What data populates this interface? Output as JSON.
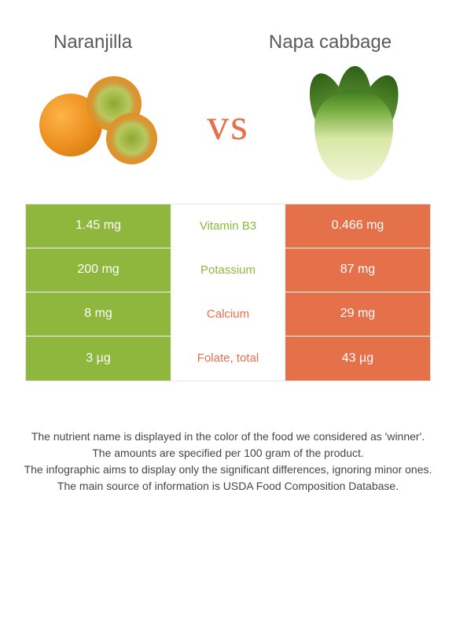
{
  "titles": {
    "left": "Naranjilla",
    "right": "Napa cabbage"
  },
  "vs_text": "vs",
  "colors": {
    "left_bg": "#8fb73e",
    "right_bg": "#e5714a",
    "mid_bg": "#ffffff",
    "title_color": "#5a5a5a",
    "vs_color": "#e5714a",
    "footer_color": "#464646",
    "cell_text": "#ffffff"
  },
  "rows": [
    {
      "nutrient": "Vitamin B3",
      "left_value": "1.45 mg",
      "right_value": "0.466 mg",
      "winner": "left"
    },
    {
      "nutrient": "Potassium",
      "left_value": "200 mg",
      "right_value": "87 mg",
      "winner": "left"
    },
    {
      "nutrient": "Calcium",
      "left_value": "8 mg",
      "right_value": "29 mg",
      "winner": "right"
    },
    {
      "nutrient": "Folate, total",
      "left_value": "3 µg",
      "right_value": "43 µg",
      "winner": "right"
    }
  ],
  "footer_lines": [
    "The nutrient name is displayed in the color of the food we considered as 'winner'.",
    "The amounts are specified per 100 gram of the product.",
    "The infographic aims to display only the significant differences, ignoring minor ones.",
    "The main source of information is USDA Food Composition Database."
  ]
}
